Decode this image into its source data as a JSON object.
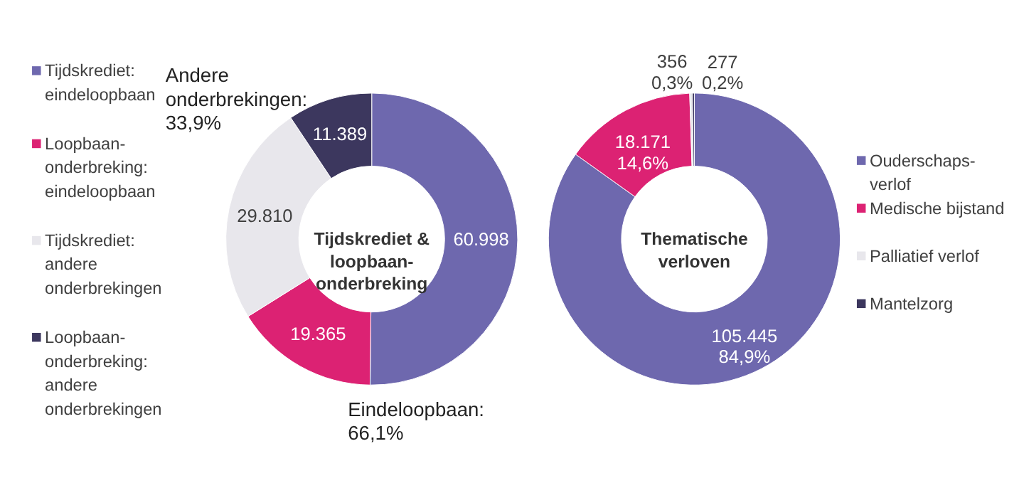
{
  "chart_data": [
    {
      "type": "donut",
      "title": "Tijdskrediet &\nloopbaan-\nonderbreking",
      "legend": "left",
      "categories": [
        "Tijdskrediet:\neindeloopbaan",
        "Loopbaan-\nonderbreking:\neindeloopbaan",
        "Tijdskrediet:\nandere\nonderbrekingen",
        "Loopbaan-\nonderbreking:\nandere\nonderbrekingen"
      ],
      "values": [
        60998,
        19365,
        29810,
        11389
      ],
      "colors": [
        "#6e68ae",
        "#dc2273",
        "#e8e7ec",
        "#3c375e"
      ],
      "value_labels": [
        "60.998",
        "19.365",
        "29.810",
        "11.389"
      ],
      "annotations": [
        "Andere\nonderbrekingen:\n33,9%",
        "Eindeloopbaan:\n66,1%"
      ]
    },
    {
      "type": "donut",
      "title": "Thematische\nverloven",
      "legend": "right",
      "categories": [
        "Ouderschaps-\nverlof",
        "Medische bijstand",
        "Palliatief verlof",
        "Mantelzorg"
      ],
      "values": [
        105445,
        18171,
        356,
        277
      ],
      "colors": [
        "#6e68ae",
        "#dc2273",
        "#e8e7ec",
        "#3c375e"
      ],
      "value_labels": [
        "105.445\n84,9%",
        "18.171\n14,6%",
        "356\n0,3%",
        "277\n0,2%"
      ]
    }
  ]
}
